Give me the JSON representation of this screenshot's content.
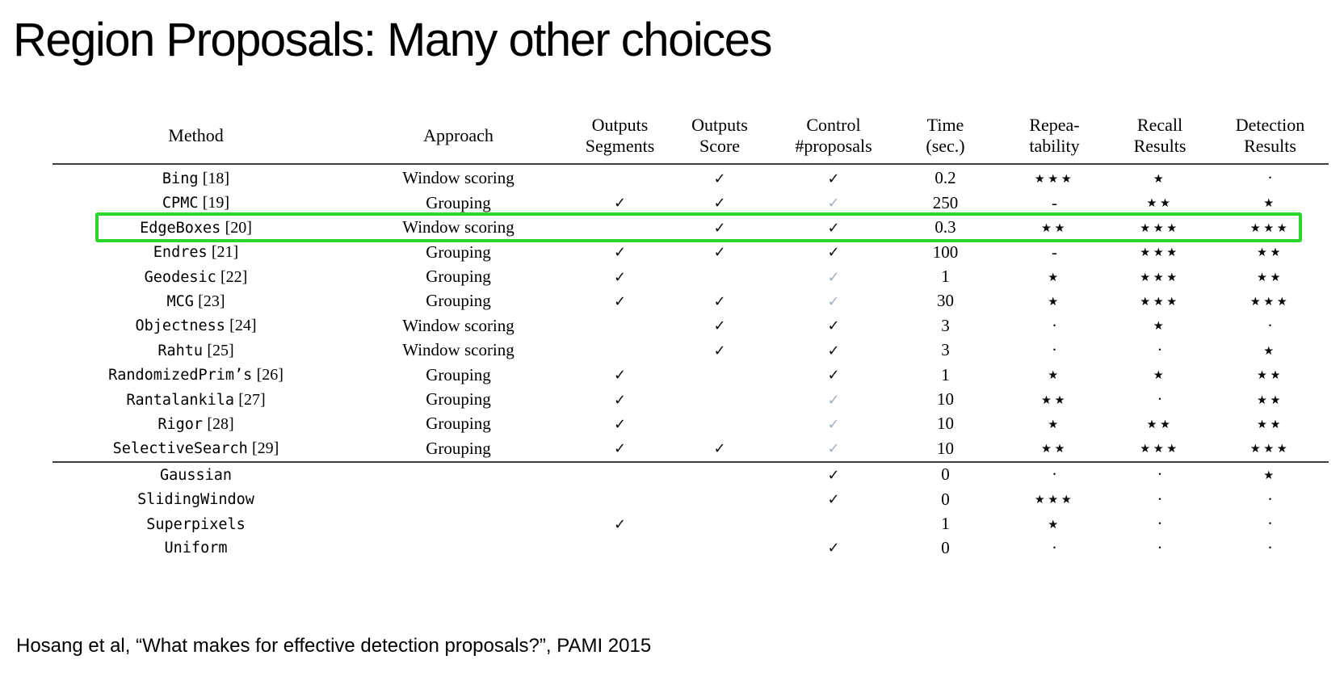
{
  "slide": {
    "title": "Region Proposals: Many other choices",
    "citation": "Hosang et al, “What makes for effective detection proposals?”, PAMI 2015"
  },
  "colors": {
    "highlight_green": "#2bd62b",
    "check_dark": "#0a0a0a",
    "check_gray": "#a3aec0",
    "rule_gray": "#3d3d3d"
  },
  "glyphs": {
    "check": "✓",
    "star": "★",
    "dot": "·",
    "dash": "-"
  },
  "table": {
    "headers": [
      [
        "Method"
      ],
      [
        "Approach"
      ],
      [
        "Outputs",
        "Segments"
      ],
      [
        "Outputs",
        "Score"
      ],
      [
        "Control",
        "#proposals"
      ],
      [
        "Time",
        "(sec.)"
      ],
      [
        "Repea-",
        "tability"
      ],
      [
        "Recall",
        "Results"
      ],
      [
        "Detection",
        "Results"
      ]
    ],
    "highlight_method": "EdgeBoxes",
    "methods": [
      {
        "method": "Bing",
        "ref": "[18]",
        "approach": "Window scoring",
        "segments": false,
        "score": true,
        "control": "yes",
        "time": "0.2",
        "repeatability": "★★★",
        "recall": "★",
        "detection": "·"
      },
      {
        "method": "CPMC",
        "ref": "[19]",
        "approach": "Grouping",
        "segments": true,
        "score": true,
        "control": "indirect",
        "time": "250",
        "repeatability": "-",
        "recall": "★★",
        "detection": "★"
      },
      {
        "method": "EdgeBoxes",
        "ref": "[20]",
        "approach": "Window scoring",
        "segments": false,
        "score": true,
        "control": "yes",
        "time": "0.3",
        "repeatability": "★★",
        "recall": "★★★",
        "detection": "★★★"
      },
      {
        "method": "Endres",
        "ref": "[21]",
        "approach": "Grouping",
        "segments": true,
        "score": true,
        "control": "yes",
        "time": "100",
        "repeatability": "-",
        "recall": "★★★",
        "detection": "★★"
      },
      {
        "method": "Geodesic",
        "ref": "[22]",
        "approach": "Grouping",
        "segments": true,
        "score": false,
        "control": "indirect",
        "time": "1",
        "repeatability": "★",
        "recall": "★★★",
        "detection": "★★"
      },
      {
        "method": "MCG",
        "ref": "[23]",
        "approach": "Grouping",
        "segments": true,
        "score": true,
        "control": "indirect",
        "time": "30",
        "repeatability": "★",
        "recall": "★★★",
        "detection": "★★★"
      },
      {
        "method": "Objectness",
        "ref": "[24]",
        "approach": "Window scoring",
        "segments": false,
        "score": true,
        "control": "yes",
        "time": "3",
        "repeatability": "·",
        "recall": "★",
        "detection": "·"
      },
      {
        "method": "Rahtu",
        "ref": "[25]",
        "approach": "Window scoring",
        "segments": false,
        "score": true,
        "control": "yes",
        "time": "3",
        "repeatability": "·",
        "recall": "·",
        "detection": "★"
      },
      {
        "method": "RandomizedPrim’s",
        "ref": "[26]",
        "approach": "Grouping",
        "segments": true,
        "score": false,
        "control": "yes",
        "time": "1",
        "repeatability": "★",
        "recall": "★",
        "detection": "★★"
      },
      {
        "method": "Rantalankila",
        "ref": "[27]",
        "approach": "Grouping",
        "segments": true,
        "score": false,
        "control": "indirect",
        "time": "10",
        "repeatability": "★★",
        "recall": "·",
        "detection": "★★"
      },
      {
        "method": "Rigor",
        "ref": "[28]",
        "approach": "Grouping",
        "segments": true,
        "score": false,
        "control": "indirect",
        "time": "10",
        "repeatability": "★",
        "recall": "★★",
        "detection": "★★"
      },
      {
        "method": "SelectiveSearch",
        "ref": "[29]",
        "approach": "Grouping",
        "segments": true,
        "score": true,
        "control": "indirect",
        "time": "10",
        "repeatability": "★★",
        "recall": "★★★",
        "detection": "★★★"
      }
    ],
    "baselines": [
      {
        "method": "Gaussian",
        "ref": "",
        "approach": "",
        "segments": false,
        "score": false,
        "control": "yes",
        "time": "0",
        "repeatability": "·",
        "recall": "·",
        "detection": "★"
      },
      {
        "method": "SlidingWindow",
        "ref": "",
        "approach": "",
        "segments": false,
        "score": false,
        "control": "yes",
        "time": "0",
        "repeatability": "★★★",
        "recall": "·",
        "detection": "·"
      },
      {
        "method": "Superpixels",
        "ref": "",
        "approach": "",
        "segments": true,
        "score": false,
        "control": "",
        "time": "1",
        "repeatability": "★",
        "recall": "·",
        "detection": "·"
      },
      {
        "method": "Uniform",
        "ref": "",
        "approach": "",
        "segments": false,
        "score": false,
        "control": "yes",
        "time": "0",
        "repeatability": "·",
        "recall": "·",
        "detection": "·"
      }
    ]
  }
}
